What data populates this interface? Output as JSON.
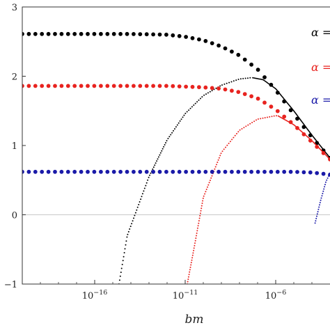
{
  "chart_data": {
    "type": "scatter",
    "xlabel": "bm",
    "x_scale": "log",
    "xlim": [
      1e-20,
      0.001
    ],
    "ylim": [
      -1,
      3
    ],
    "grid": false,
    "reference_line_y": 0,
    "x_ticks": [
      {
        "value": 1e-16,
        "base": "10",
        "exp": "−16"
      },
      {
        "value": 1e-11,
        "base": "10",
        "exp": "−11"
      },
      {
        "value": 1e-06,
        "base": "10",
        "exp": "−6"
      }
    ],
    "y_ticks": [
      {
        "value": -1,
        "label": "−1"
      },
      {
        "value": 0,
        "label": "0"
      },
      {
        "value": 1,
        "label": "1"
      },
      {
        "value": 2,
        "label": "2"
      },
      {
        "value": 3,
        "label": "3"
      }
    ],
    "legend_placement": "right",
    "legend": [
      {
        "text": "α =",
        "color": "#000000"
      },
      {
        "text": "α =",
        "color": "#e8231f"
      },
      {
        "text": "α =",
        "color": "#1a1aa8"
      }
    ],
    "series": [
      {
        "color": "#000000",
        "style": "big-dots",
        "x": [
          1e-20,
          1e-18,
          1e-16,
          1e-14,
          1e-12,
          1e-11,
          1e-10,
          1e-09,
          1e-08,
          1e-07,
          1e-06,
          1e-05,
          0.0001,
          0.001
        ],
        "y": [
          2.61,
          2.61,
          2.61,
          2.61,
          2.6,
          2.57,
          2.52,
          2.43,
          2.3,
          2.1,
          1.8,
          1.45,
          1.12,
          0.82
        ]
      },
      {
        "color": "#000000",
        "style": "fine-dots",
        "x": [
          2.2e-15,
          6.3e-15,
          1e-13,
          1e-12,
          1e-11,
          1e-10,
          1e-09,
          1e-08,
          5e-08
        ],
        "y": [
          -1.0,
          -0.3,
          0.55,
          1.08,
          1.46,
          1.72,
          1.87,
          1.96,
          1.98
        ]
      },
      {
        "color": "#000000",
        "style": "line",
        "x": [
          5e-08,
          2e-07,
          1e-06,
          1e-05,
          0.0001,
          0.001
        ],
        "y": [
          1.98,
          1.95,
          1.82,
          1.5,
          1.15,
          0.82
        ]
      },
      {
        "color": "#e8231f",
        "style": "big-dots",
        "x": [
          1e-20,
          1e-18,
          1e-16,
          1e-14,
          1e-12,
          1e-11,
          1e-10,
          1e-09,
          1e-08,
          1e-07,
          1e-06,
          1e-05,
          0.0001,
          0.001
        ],
        "y": [
          1.86,
          1.86,
          1.86,
          1.86,
          1.86,
          1.85,
          1.84,
          1.82,
          1.77,
          1.68,
          1.52,
          1.3,
          1.05,
          0.8
        ]
      },
      {
        "color": "#e8231f",
        "style": "fine-dots",
        "x": [
          1.3e-11,
          3e-11,
          1e-10,
          1e-09,
          1e-08,
          1e-07,
          1e-06,
          1.3e-06
        ],
        "y": [
          -1.0,
          -0.5,
          0.25,
          0.9,
          1.22,
          1.38,
          1.43,
          1.43
        ]
      },
      {
        "color": "#e8231f",
        "style": "line",
        "x": [
          1.3e-06,
          1e-05,
          0.0001,
          0.001
        ],
        "y": [
          1.43,
          1.3,
          1.07,
          0.8
        ]
      },
      {
        "color": "#1a1aa8",
        "style": "big-dots",
        "x": [
          1e-20,
          1e-18,
          1e-16,
          1e-14,
          1e-12,
          1e-10,
          1e-08,
          1e-06,
          1e-05,
          0.0001,
          0.001
        ],
        "y": [
          0.62,
          0.62,
          0.62,
          0.62,
          0.62,
          0.62,
          0.62,
          0.62,
          0.62,
          0.61,
          0.58
        ]
      },
      {
        "color": "#1a1aa8",
        "style": "fine-dots",
        "x": [
          0.00015,
          0.0003,
          0.0006,
          0.001
        ],
        "y": [
          -0.12,
          0.2,
          0.48,
          0.6
        ]
      }
    ]
  }
}
